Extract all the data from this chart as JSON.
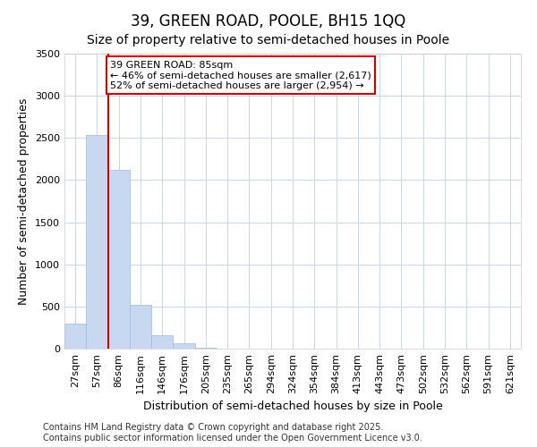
{
  "title": "39, GREEN ROAD, POOLE, BH15 1QQ",
  "subtitle": "Size of property relative to semi-detached houses in Poole",
  "xlabel": "Distribution of semi-detached houses by size in Poole",
  "ylabel": "Number of semi-detached properties",
  "bar_color": "#c8d8f0",
  "bar_edge_color": "#a0b8d8",
  "background_color": "#ffffff",
  "plot_bg_color": "#ffffff",
  "grid_color": "#c8d4e8",
  "categories": [
    "27sqm",
    "57sqm",
    "86sqm",
    "116sqm",
    "146sqm",
    "176sqm",
    "205sqm",
    "235sqm",
    "265sqm",
    "294sqm",
    "324sqm",
    "354sqm",
    "384sqm",
    "413sqm",
    "443sqm",
    "473sqm",
    "502sqm",
    "532sqm",
    "562sqm",
    "591sqm",
    "621sqm"
  ],
  "values": [
    300,
    2540,
    2120,
    520,
    160,
    65,
    10,
    2,
    0,
    0,
    0,
    0,
    0,
    0,
    0,
    0,
    0,
    0,
    0,
    0,
    0
  ],
  "ylim": [
    0,
    3500
  ],
  "yticks": [
    0,
    500,
    1000,
    1500,
    2000,
    2500,
    3000,
    3500
  ],
  "property_line_index": 2,
  "property_label": "39 GREEN ROAD: 85sqm",
  "annotation_line1": "← 46% of semi-detached houses are smaller (2,617)",
  "annotation_line2": "52% of semi-detached houses are larger (2,954) →",
  "annotation_box_color": "#ffffff",
  "annotation_border_color": "#cc0000",
  "property_line_color": "#cc0000",
  "footer_line1": "Contains HM Land Registry data © Crown copyright and database right 2025.",
  "footer_line2": "Contains public sector information licensed under the Open Government Licence v3.0.",
  "title_fontsize": 12,
  "subtitle_fontsize": 10,
  "axis_label_fontsize": 9,
  "tick_fontsize": 8,
  "annotation_fontsize": 8,
  "footer_fontsize": 7
}
